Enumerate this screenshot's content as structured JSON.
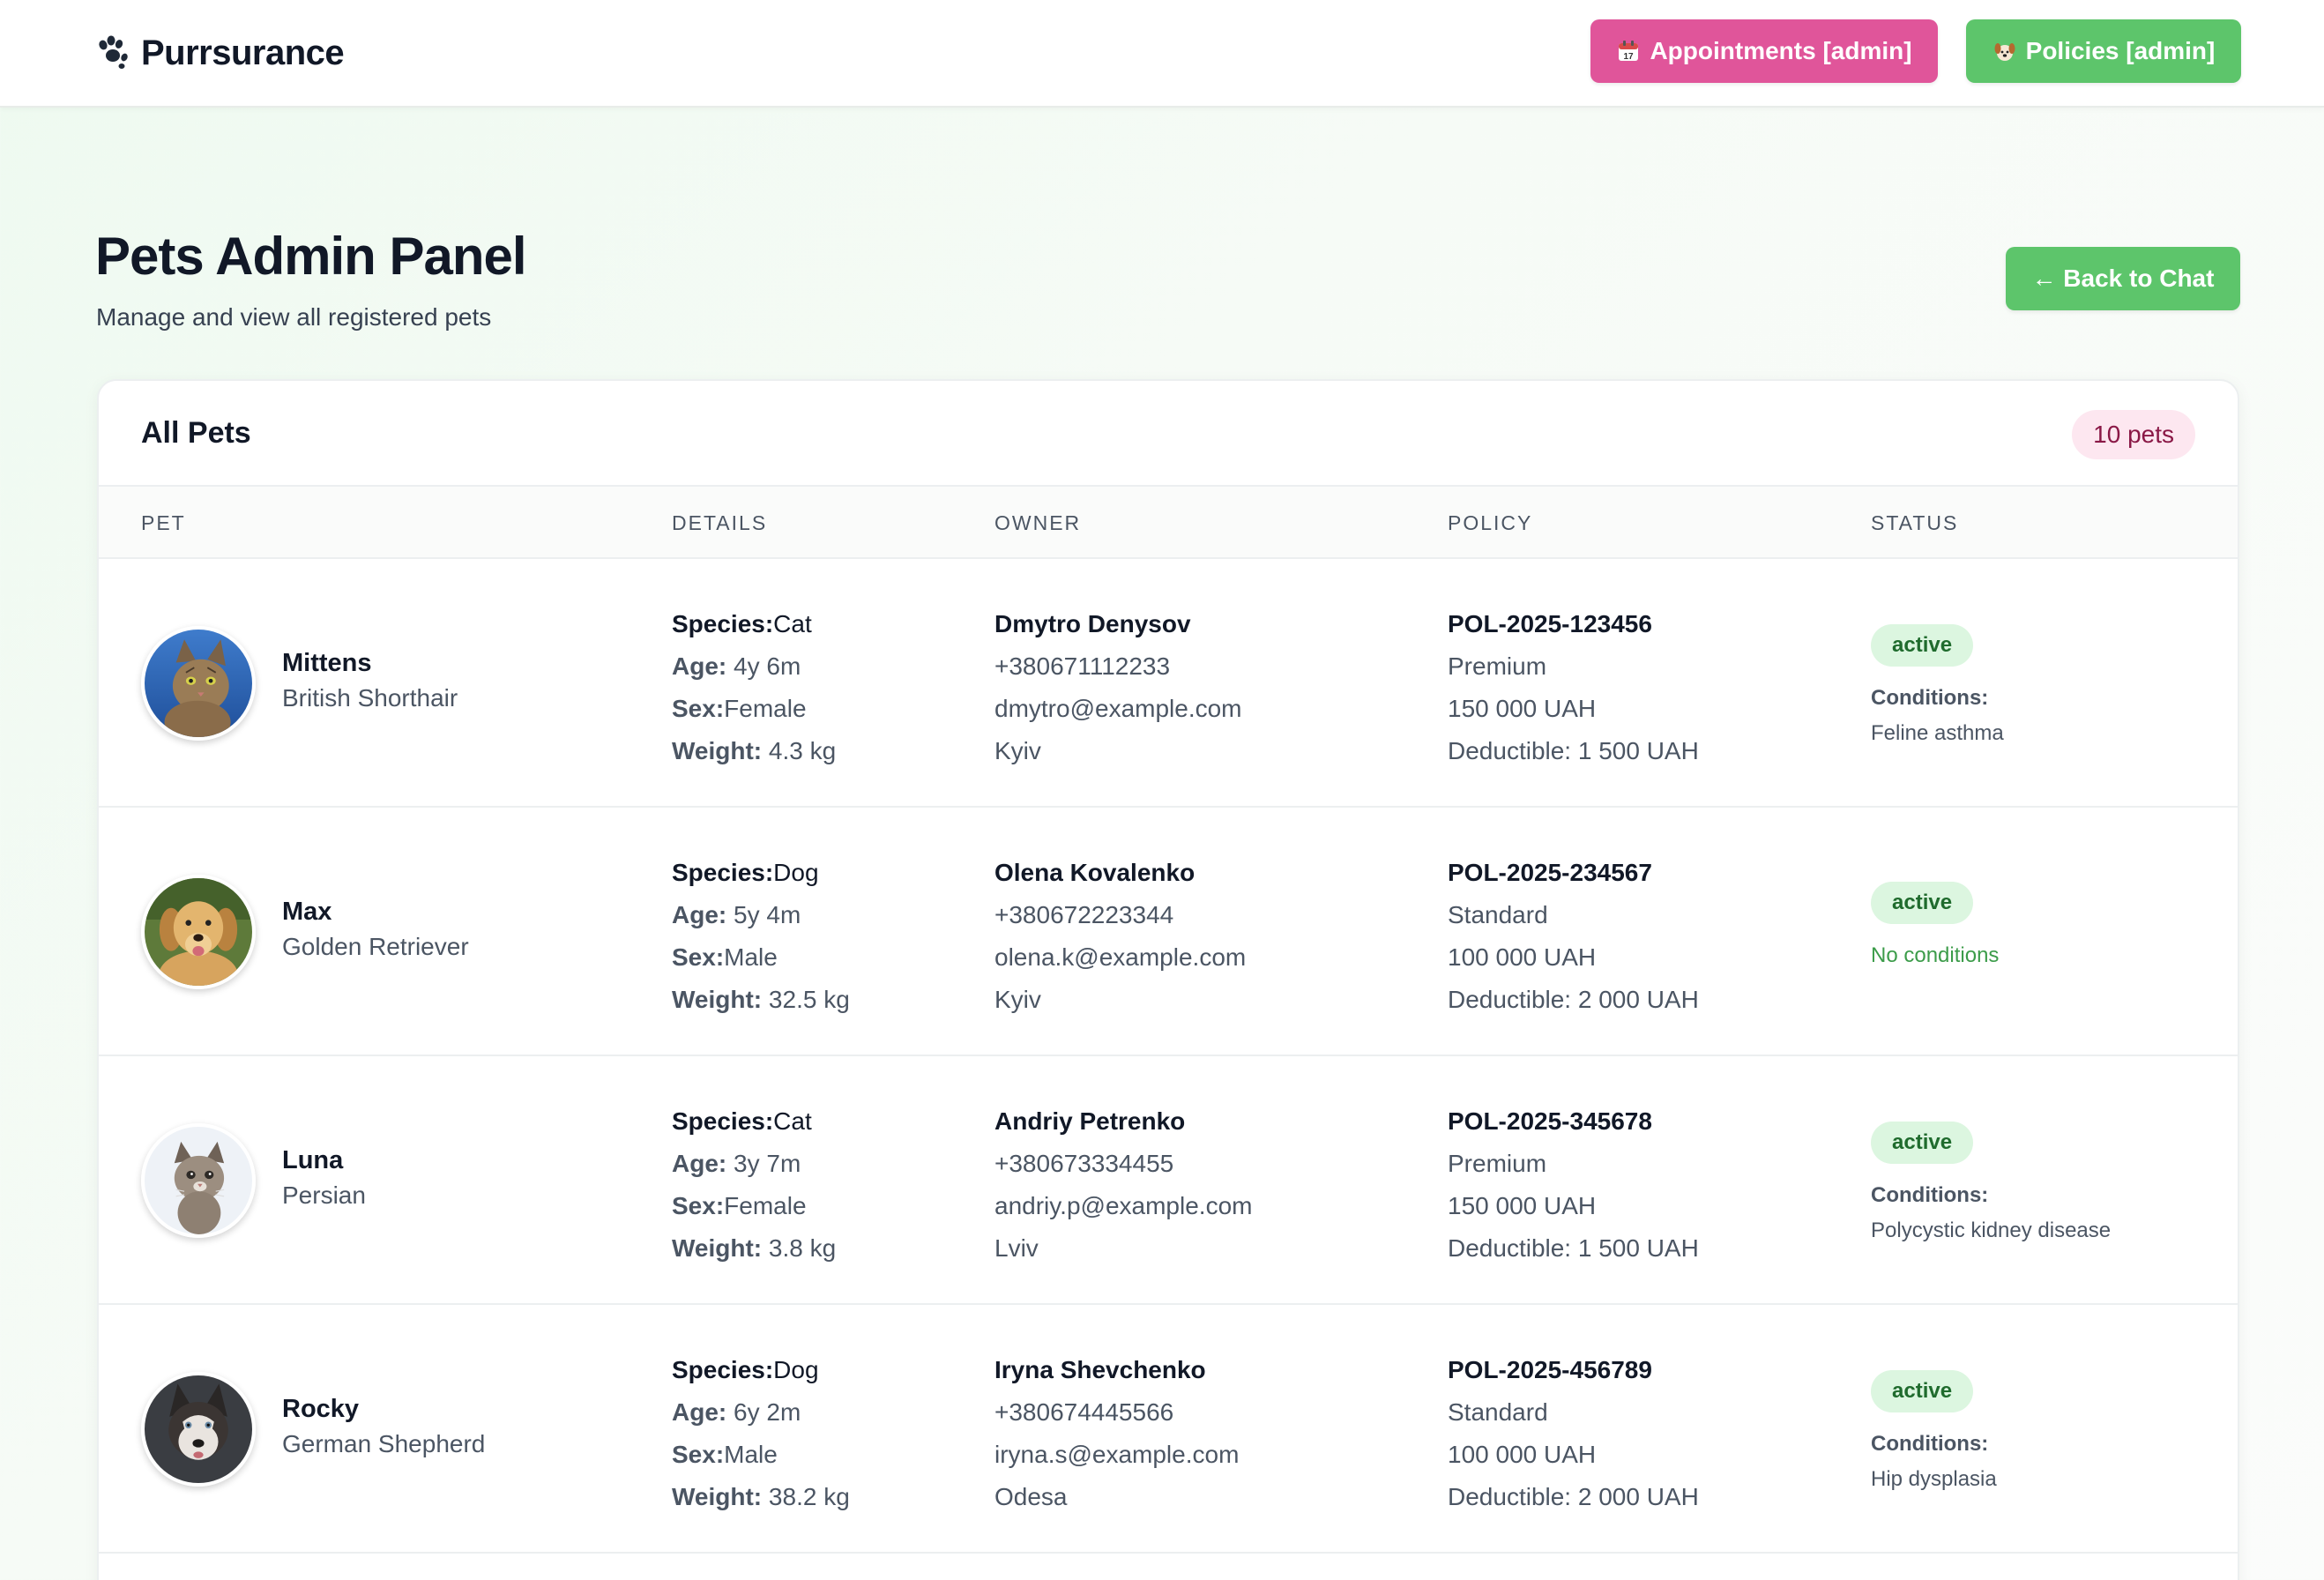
{
  "header": {
    "brand": "Purrsurance",
    "nav": {
      "appointments": "Appointments [admin]",
      "policies": "Policies [admin]"
    }
  },
  "page": {
    "title": "Pets Admin Panel",
    "subtitle": "Manage and view all registered pets",
    "back_button": "← Back to Chat"
  },
  "card": {
    "title": "All Pets",
    "count": "10 pets",
    "columns": [
      "PET",
      "DETAILS",
      "OWNER",
      "POLICY",
      "STATUS"
    ]
  },
  "labels": {
    "species": "Species:",
    "age": "Age:",
    "sex": "Sex:",
    "weight": "Weight:",
    "conditions": "Conditions:",
    "no_conditions": "No conditions"
  },
  "pets": [
    {
      "name": "Mittens",
      "breed": "British Shorthair",
      "species": "Cat",
      "age": "4y 6m",
      "sex": "Female",
      "weight": "4.3 kg",
      "owner": {
        "name": "Dmytro Denysov",
        "phone": "+380671112233",
        "email": "dmytro@example.com",
        "city": "Kyiv"
      },
      "policy": {
        "number": "POL-2025-123456",
        "plan": "Premium",
        "coverage": "150 000 UAH",
        "deductible": "Deductible: 1 500 UAH"
      },
      "status": "active",
      "conditions": "Feline asthma"
    },
    {
      "name": "Max",
      "breed": "Golden Retriever",
      "species": "Dog",
      "age": "5y 4m",
      "sex": "Male",
      "weight": "32.5 kg",
      "owner": {
        "name": "Olena Kovalenko",
        "phone": "+380672223344",
        "email": "olena.k@example.com",
        "city": "Kyiv"
      },
      "policy": {
        "number": "POL-2025-234567",
        "plan": "Standard",
        "coverage": "100 000 UAH",
        "deductible": "Deductible: 2 000 UAH"
      },
      "status": "active",
      "conditions": ""
    },
    {
      "name": "Luna",
      "breed": "Persian",
      "species": "Cat",
      "age": "3y 7m",
      "sex": "Female",
      "weight": "3.8 kg",
      "owner": {
        "name": "Andriy Petrenko",
        "phone": "+380673334455",
        "email": "andriy.p@example.com",
        "city": "Lviv"
      },
      "policy": {
        "number": "POL-2025-345678",
        "plan": "Premium",
        "coverage": "150 000 UAH",
        "deductible": "Deductible: 1 500 UAH"
      },
      "status": "active",
      "conditions": "Polycystic kidney disease"
    },
    {
      "name": "Rocky",
      "breed": "German Shepherd",
      "species": "Dog",
      "age": "6y 2m",
      "sex": "Male",
      "weight": "38.2 kg",
      "owner": {
        "name": "Iryna Shevchenko",
        "phone": "+380674445566",
        "email": "iryna.s@example.com",
        "city": "Odesa"
      },
      "policy": {
        "number": "POL-2025-456789",
        "plan": "Standard",
        "coverage": "100 000 UAH",
        "deductible": "Deductible: 2 000 UAH"
      },
      "status": "active",
      "conditions": "Hip dysplasia"
    }
  ],
  "colors": {
    "appointments_button": "#e0559a",
    "primary_green": "#5dc56b",
    "status_active_bg": "#dcf6e0",
    "count_pill_bg": "#fde7f0"
  },
  "icons": {
    "brand": "paw-icon",
    "appointments": "calendar-icon",
    "policies": "dog-icon"
  }
}
